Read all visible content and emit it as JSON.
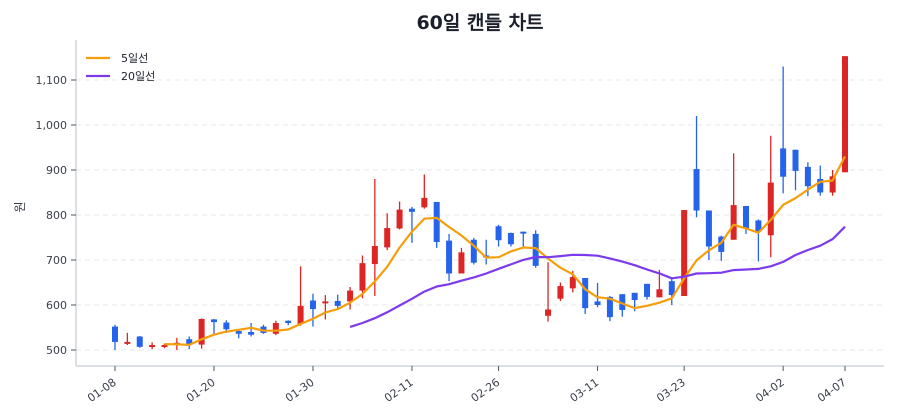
{
  "chart_data": {
    "type": "candlestick",
    "title": "60일 캔들 차트",
    "xlabel": "",
    "ylabel": "원",
    "ylim": [
      465,
      1185
    ],
    "yticks": [
      500,
      600,
      700,
      800,
      900,
      1000,
      1100
    ],
    "ytick_labels": [
      "500",
      "600",
      "700",
      "800",
      "900",
      "1,000",
      "1,100"
    ],
    "xticks": [
      {
        "index": 0,
        "label": "01-08"
      },
      {
        "index": 8,
        "label": "01-20"
      },
      {
        "index": 16,
        "label": "01-30"
      },
      {
        "index": 24,
        "label": "02-11"
      },
      {
        "index": 31,
        "label": "02-26"
      },
      {
        "index": 39,
        "label": "03-11"
      },
      {
        "index": 46,
        "label": "03-23"
      },
      {
        "index": 54,
        "label": "04-02"
      },
      {
        "index": 59,
        "label": "04-07"
      }
    ],
    "grid": {
      "y": true,
      "x": false,
      "style": "dashed"
    },
    "legend": {
      "position": "upper left",
      "entries": [
        {
          "label": "5일선",
          "color": "#f59e0b",
          "period": 5
        },
        {
          "label": "20일선",
          "color": "#7c3aed",
          "period": 20
        }
      ]
    },
    "colors": {
      "up": "#dc2626",
      "down": "#2563eb",
      "grid": "#e5e7eb",
      "axis": "#d1d5db"
    },
    "ohlc": [
      [
        552,
        556,
        500,
        518
      ],
      [
        514,
        538,
        511,
        518
      ],
      [
        530,
        531,
        505,
        507
      ],
      [
        508,
        517,
        502,
        511
      ],
      [
        507,
        514,
        504,
        511
      ],
      [
        512,
        527,
        500,
        516
      ],
      [
        524,
        530,
        502,
        512
      ],
      [
        512,
        570,
        503,
        569
      ],
      [
        568,
        569,
        533,
        562
      ],
      [
        561,
        566,
        538,
        546
      ],
      [
        542,
        546,
        526,
        536
      ],
      [
        540,
        560,
        530,
        534
      ],
      [
        552,
        556,
        536,
        538
      ],
      [
        536,
        565,
        533,
        560
      ],
      [
        565,
        566,
        555,
        560
      ],
      [
        558,
        686,
        554,
        598
      ],
      [
        610,
        625,
        552,
        591
      ],
      [
        605,
        622,
        568,
        608
      ],
      [
        609,
        623,
        592,
        598
      ],
      [
        608,
        640,
        590,
        632
      ],
      [
        632,
        710,
        615,
        693
      ],
      [
        691,
        880,
        620,
        731
      ],
      [
        728,
        804,
        722,
        771
      ],
      [
        770,
        830,
        768,
        812
      ],
      [
        814,
        818,
        738,
        807
      ],
      [
        817,
        890,
        814,
        838
      ],
      [
        829,
        829,
        727,
        740
      ],
      [
        743,
        758,
        653,
        670
      ],
      [
        670,
        727,
        670,
        717
      ],
      [
        745,
        749,
        690,
        694
      ],
      [
        710,
        745,
        690,
        706
      ],
      [
        775,
        778,
        730,
        744
      ],
      [
        760,
        761,
        730,
        735
      ],
      [
        763,
        763,
        726,
        760
      ],
      [
        758,
        766,
        683,
        687
      ],
      [
        576,
        695,
        563,
        590
      ],
      [
        614,
        650,
        609,
        642
      ],
      [
        637,
        676,
        628,
        662
      ],
      [
        660,
        660,
        580,
        593
      ],
      [
        608,
        649,
        595,
        600
      ],
      [
        618,
        620,
        564,
        573
      ],
      [
        624,
        624,
        574,
        589
      ],
      [
        627,
        627,
        586,
        611
      ],
      [
        647,
        647,
        612,
        618
      ],
      [
        617,
        678,
        617,
        635
      ],
      [
        653,
        658,
        600,
        622
      ],
      [
        620,
        811,
        620,
        811
      ],
      [
        902,
        1020,
        795,
        810
      ],
      [
        810,
        810,
        700,
        730
      ],
      [
        752,
        754,
        698,
        718
      ],
      [
        745,
        937,
        745,
        822
      ],
      [
        820,
        820,
        758,
        770
      ],
      [
        788,
        790,
        697,
        763
      ],
      [
        755,
        976,
        706,
        872
      ],
      [
        948,
        1130,
        848,
        885
      ],
      [
        945,
        945,
        855,
        898
      ],
      [
        907,
        917,
        842,
        864
      ],
      [
        880,
        910,
        843,
        850
      ],
      [
        850,
        900,
        843,
        886
      ],
      [
        895,
        1153,
        895,
        1153
      ]
    ]
  }
}
